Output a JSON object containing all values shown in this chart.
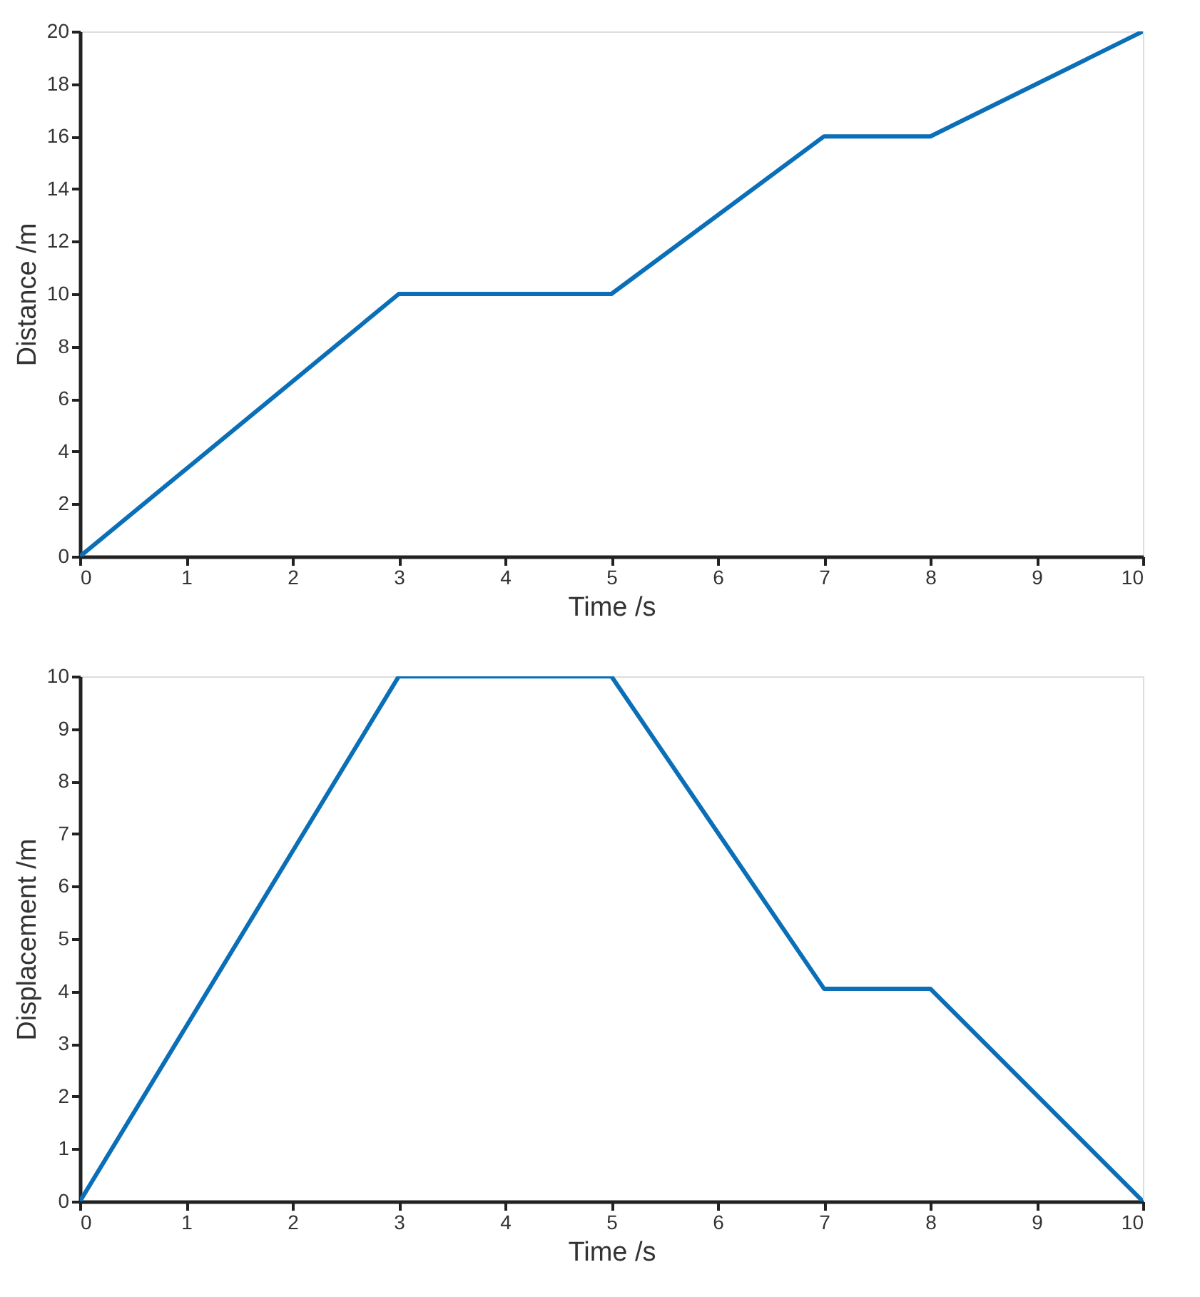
{
  "chart_data": [
    {
      "type": "line",
      "xlabel": "Time /s",
      "ylabel": "Distance /m",
      "x": [
        0,
        3,
        5,
        7,
        8,
        10
      ],
      "series": [
        {
          "color": "#0a6fb7",
          "values": [
            0,
            10,
            10,
            16,
            16,
            20
          ]
        }
      ],
      "xlim": [
        0,
        10
      ],
      "xticks": [
        0,
        1,
        2,
        3,
        4,
        5,
        6,
        7,
        8,
        9,
        10
      ],
      "ylim": [
        0,
        20
      ],
      "yticks": [
        0,
        2,
        4,
        6,
        8,
        10,
        12,
        14,
        16,
        18,
        20
      ]
    },
    {
      "type": "line",
      "xlabel": "Time /s",
      "ylabel": "Displacement /m",
      "x": [
        0,
        3,
        5,
        7,
        8,
        10
      ],
      "series": [
        {
          "color": "#0a6fb7",
          "values": [
            0,
            10,
            10,
            4.05,
            4.05,
            0
          ]
        }
      ],
      "xlim": [
        0,
        10
      ],
      "xticks": [
        0,
        1,
        2,
        3,
        4,
        5,
        6,
        7,
        8,
        9,
        10
      ],
      "ylim": [
        0,
        10
      ],
      "yticks": [
        0,
        1,
        2,
        3,
        4,
        5,
        6,
        7,
        8,
        9,
        10
      ]
    }
  ]
}
